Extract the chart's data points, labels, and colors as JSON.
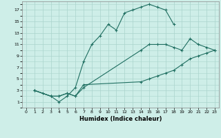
{
  "xlabel": "Humidex (Indice chaleur)",
  "background_color": "#ceeee8",
  "grid_color": "#aad4cc",
  "line_color": "#1e6e60",
  "line1_x": [
    1,
    2,
    3,
    4,
    5,
    6,
    7,
    8,
    9,
    10,
    11,
    12,
    13,
    14,
    15,
    16,
    17,
    18
  ],
  "line1_y": [
    3,
    2.5,
    2,
    1,
    2,
    3.5,
    8,
    11,
    12.5,
    14.5,
    13.5,
    16.5,
    17,
    17.5,
    18,
    17.5,
    17,
    14.5
  ],
  "line2_x": [
    1,
    3,
    4,
    5,
    6,
    7,
    14,
    15,
    16,
    17,
    18,
    19,
    20,
    21,
    22,
    23
  ],
  "line2_y": [
    3,
    2,
    2,
    2.5,
    2,
    3.5,
    10,
    11,
    11,
    11,
    10.5,
    10,
    12,
    11,
    10.5,
    10
  ],
  "line3_x": [
    1,
    3,
    4,
    5,
    6,
    7,
    14,
    15,
    16,
    17,
    18,
    19,
    20,
    21,
    22,
    23
  ],
  "line3_y": [
    3,
    2,
    2,
    2.5,
    2,
    4,
    4.5,
    5,
    5.5,
    6,
    6.5,
    7.5,
    8.5,
    9,
    9.5,
    10
  ],
  "xlim": [
    -0.5,
    23.5
  ],
  "ylim": [
    0,
    18.5
  ],
  "xticks": [
    0,
    1,
    2,
    3,
    4,
    5,
    6,
    7,
    8,
    9,
    10,
    11,
    12,
    13,
    14,
    15,
    16,
    17,
    18,
    19,
    20,
    21,
    22,
    23
  ],
  "yticks": [
    1,
    3,
    5,
    7,
    9,
    11,
    13,
    15,
    17
  ]
}
